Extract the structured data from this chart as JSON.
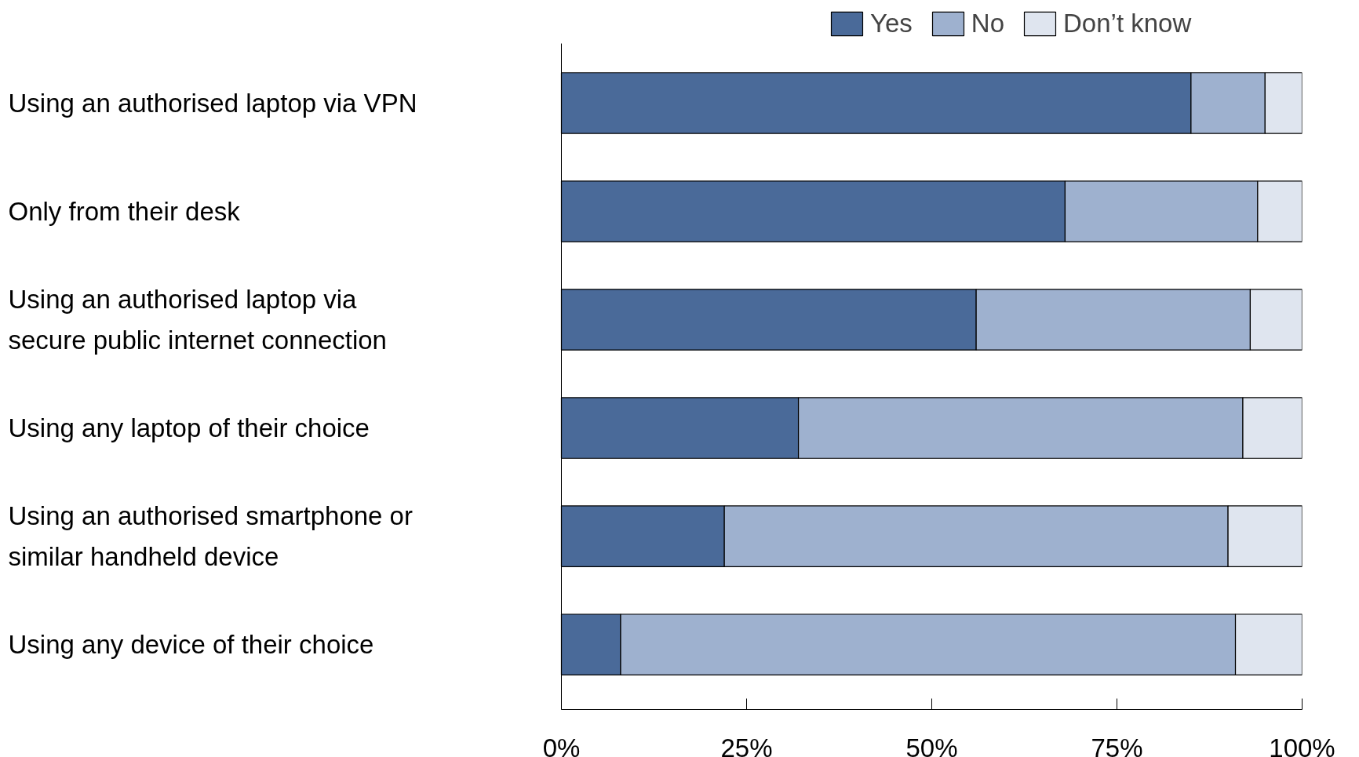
{
  "chart_data": {
    "type": "bar",
    "orientation": "horizontal",
    "stacked": true,
    "categories": [
      "Using an authorised laptop via VPN",
      "Only from their desk",
      "Using an authorised laptop via\nsecure public internet connection",
      "Using any laptop of their choice",
      "Using an authorised smartphone or\nsimilar handheld device",
      "Using any device of their choice"
    ],
    "series": [
      {
        "name": "Yes",
        "color": "#4a6a99",
        "values": [
          85,
          68,
          56,
          32,
          22,
          8
        ]
      },
      {
        "name": "No",
        "color": "#9eb1cf",
        "values": [
          10,
          26,
          37,
          60,
          68,
          83
        ]
      },
      {
        "name": "Don’t know",
        "color": "#dfe5ef",
        "values": [
          5,
          6,
          7,
          8,
          10,
          9
        ]
      }
    ],
    "xlim": [
      0,
      100
    ],
    "xticks": [
      {
        "value": 0,
        "label": "0%"
      },
      {
        "value": 25,
        "label": "25%"
      },
      {
        "value": 50,
        "label": "50%"
      },
      {
        "value": 75,
        "label": "75%"
      },
      {
        "value": 100,
        "label": "100%"
      }
    ],
    "grid": false,
    "legend": "top right"
  }
}
